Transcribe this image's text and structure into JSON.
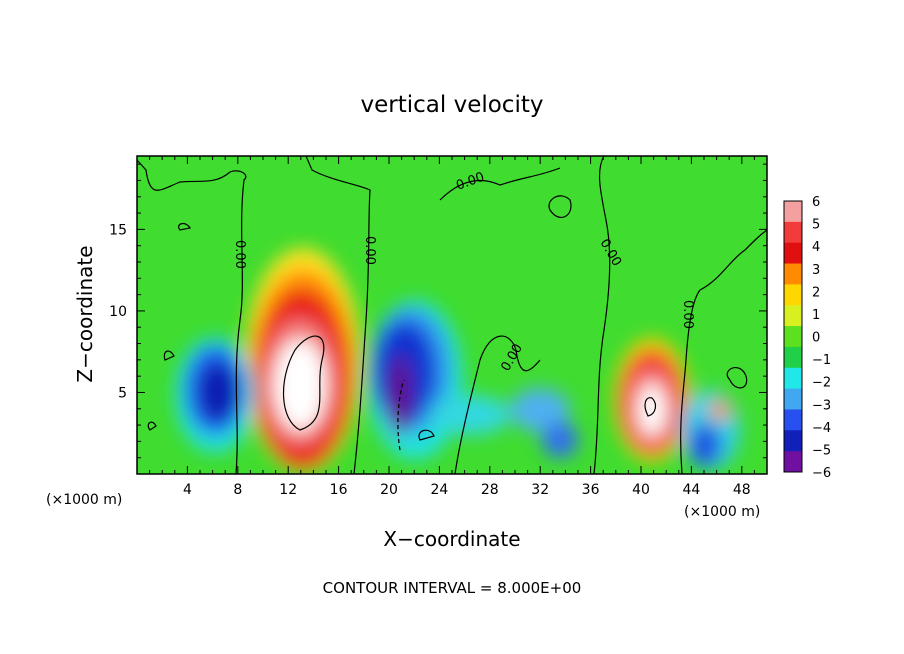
{
  "chart_data": {
    "type": "heatmap",
    "title": "vertical velocity",
    "xlabel": "X−coordinate",
    "ylabel": "Z−coordinate",
    "x_unit_label": "(×1000 m)",
    "y_unit_label": "(×1000 m)",
    "xlim": [
      0,
      50
    ],
    "ylim": [
      0,
      19.5
    ],
    "x_ticks": [
      "4",
      "8",
      "12",
      "16",
      "20",
      "24",
      "28",
      "32",
      "36",
      "40",
      "44",
      "48"
    ],
    "x_tick_values": [
      4,
      8,
      12,
      16,
      20,
      24,
      28,
      32,
      36,
      40,
      44,
      48
    ],
    "y_ticks": [
      "5",
      "10",
      "15"
    ],
    "y_tick_values": [
      5,
      10,
      15
    ],
    "colorbar": {
      "labels": [
        "6",
        "5",
        "4",
        "3",
        "2",
        "1",
        "0",
        "−1",
        "−2",
        "−3",
        "−4",
        "−5",
        "−6"
      ],
      "colors": [
        "#f4a0a0",
        "#f23c3c",
        "#e01010",
        "#ff8c00",
        "#ffd700",
        "#d8f020",
        "#5ce020",
        "#20d048",
        "#20e8e8",
        "#40a8f0",
        "#2850f0",
        "#1020b8",
        "#7010a0"
      ]
    },
    "contour_label": "0.00",
    "footer": "CONTOUR INTERVAL = 8.000E+00",
    "features": [
      {
        "type": "updraft",
        "x": 13.5,
        "z": 6.5,
        "peak": 6
      },
      {
        "type": "downdraft",
        "x": 6.5,
        "z": 5.5,
        "peak": -5
      },
      {
        "type": "downdraft",
        "x": 21.5,
        "z": 6.5,
        "peak": -6
      },
      {
        "type": "updraft",
        "x": 40.5,
        "z": 4.5,
        "peak": 6
      },
      {
        "type": "downdraft",
        "x": 45.5,
        "z": 2.5,
        "peak": -4
      }
    ]
  }
}
